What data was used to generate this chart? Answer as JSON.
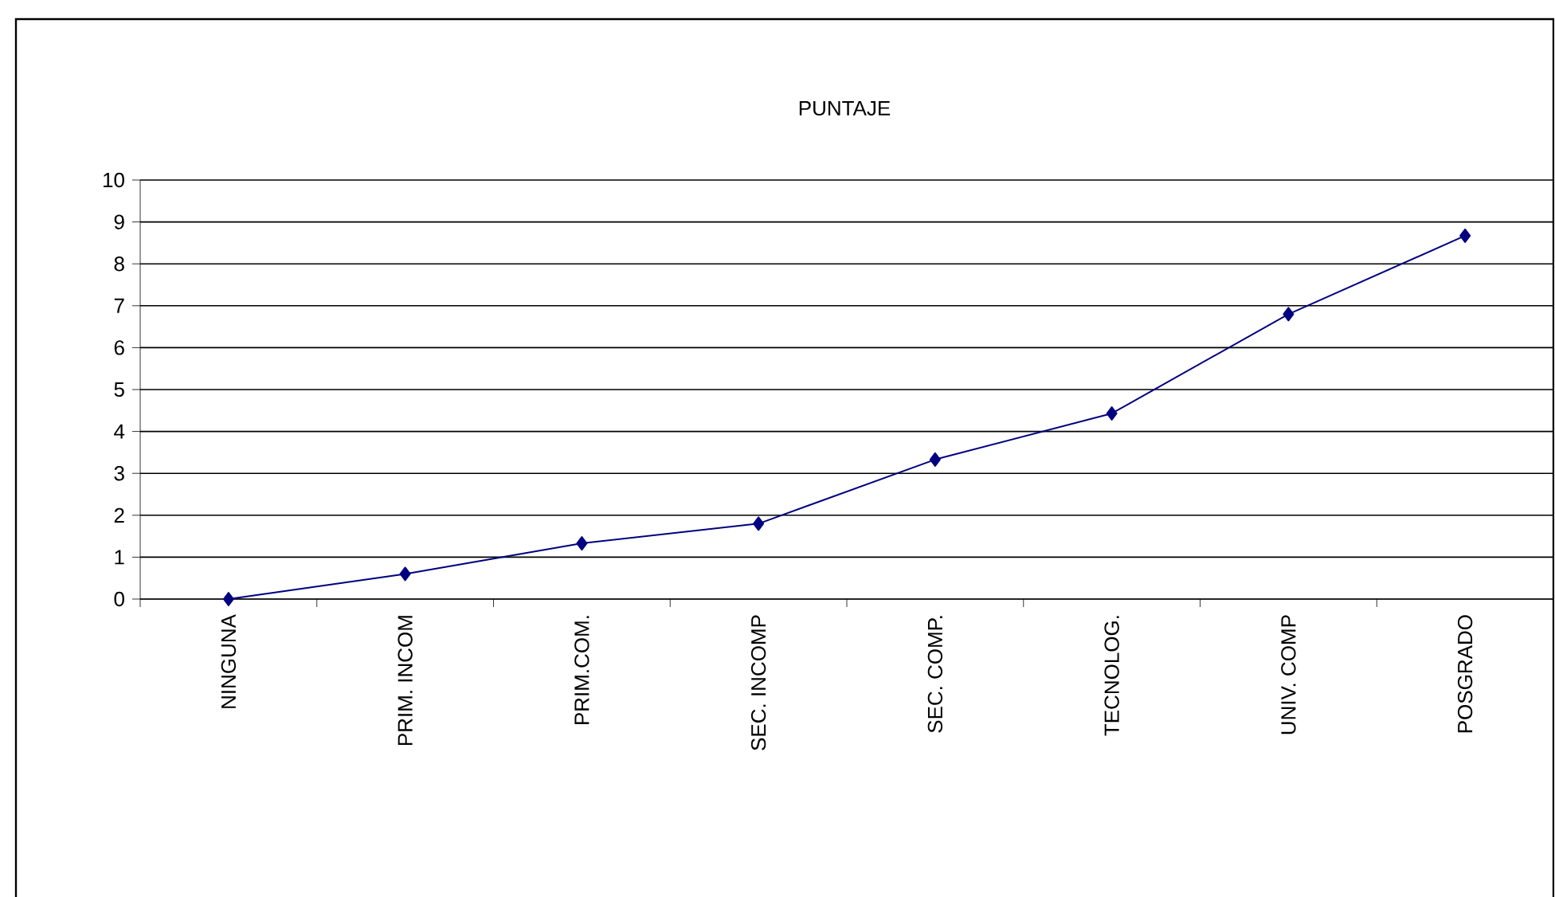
{
  "chart_data": {
    "type": "line",
    "title": "PUNTAJE",
    "categories": [
      "NINGUNA",
      "PRIM. INCOM",
      "PRIM.COM.",
      "SEC. INCOMP",
      "SEC. COMP.",
      "TECNOLOG.",
      "UNIV. COMP",
      "POSGRADO"
    ],
    "series": [
      {
        "color": "#000080",
        "values": [
          0,
          0.6,
          1.33,
          1.8,
          3.33,
          4.43,
          6.8,
          8.67
        ]
      }
    ],
    "ylim": [
      0,
      10
    ],
    "yticks": [
      0,
      1,
      2,
      3,
      4,
      5,
      6,
      7,
      8,
      9,
      10
    ],
    "grid": "y",
    "marker": "diamond",
    "line_style": "solid"
  }
}
